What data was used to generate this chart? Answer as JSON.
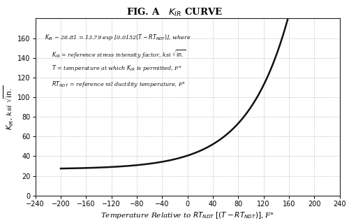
{
  "title_prefix": "FIG. A  ",
  "title_kir": "K",
  "title_suffix": " CURVE",
  "xlabel": "Temperature Relative to $RT_{NDT}$ $[(T - RT_{NDT})]$, F°",
  "ylabel": "$K_{IR}$, ksi $\\sqrt{\\rm in.}$",
  "xlim": [
    -240,
    240
  ],
  "ylim": [
    0,
    180
  ],
  "xticks": [
    -240,
    -200,
    -160,
    -120,
    -80,
    -40,
    0,
    40,
    80,
    120,
    160,
    200,
    240
  ],
  "yticks": [
    0,
    20,
    40,
    60,
    80,
    100,
    120,
    140,
    160
  ],
  "curve_color": "#111111",
  "curve_linewidth": 1.8,
  "grid_color": "#999999",
  "grid_linewidth": 0.5,
  "background_color": "#ffffff",
  "outer_bg": "#ffffff",
  "border_color": "#222222",
  "annotation_fontsize": 5.8,
  "tick_fontsize": 7.0,
  "xlabel_fontsize": 7.5,
  "ylabel_fontsize": 7.5,
  "title_fontsize": 9.5
}
